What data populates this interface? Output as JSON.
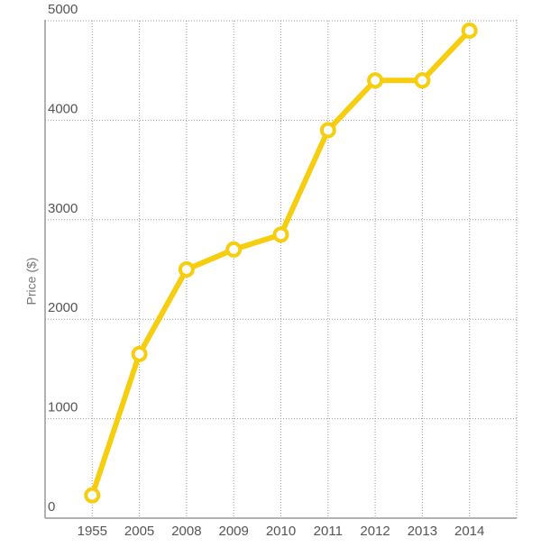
{
  "chart_data": {
    "type": "line",
    "y_label": "Price ($)",
    "categories": [
      "1955",
      "2005",
      "2008",
      "2009",
      "2010",
      "2011",
      "2012",
      "2013",
      "2014"
    ],
    "series": [
      {
        "name": "Price",
        "color": "#f6cd0f",
        "values": [
          230,
          1650,
          2500,
          2700,
          2850,
          3900,
          4400,
          4400,
          4900
        ]
      }
    ],
    "ylim": [
      0,
      5000
    ],
    "yticks": [
      0,
      1000,
      2000,
      3000,
      4000,
      5000
    ],
    "grid": true
  }
}
